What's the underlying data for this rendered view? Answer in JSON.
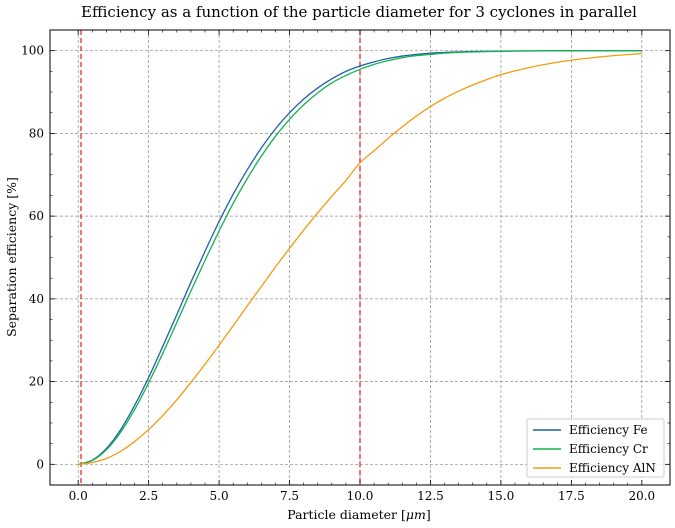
{
  "chart_data": {
    "type": "line",
    "title": "Efficiency as a function of the particle diameter for 3 cyclones in parallel",
    "xlabel": "Particle diameter [",
    "xlabel_unit": "μm",
    "xlabel_end": "]",
    "ylabel": "Separation efficiency [%]",
    "xlim": [
      -1.0,
      21.0
    ],
    "ylim": [
      -5,
      105
    ],
    "xticks": [
      0.0,
      2.5,
      5.0,
      7.5,
      10.0,
      12.5,
      15.0,
      17.5,
      20.0
    ],
    "xtick_labels": [
      "0.0",
      "2.5",
      "5.0",
      "7.5",
      "10.0",
      "12.5",
      "15.0",
      "17.5",
      "20.0"
    ],
    "yticks": [
      0,
      20,
      40,
      60,
      80,
      100
    ],
    "ytick_labels": [
      "0",
      "20",
      "40",
      "60",
      "80",
      "100"
    ],
    "grid": true,
    "legend_position": "lower-right",
    "vlines": [
      {
        "x": 0.1,
        "color": "#e31a1c",
        "style": "dashed"
      },
      {
        "x": 10.0,
        "color": "#e31a1c",
        "style": "dashed"
      }
    ],
    "x": [
      0,
      0.5,
      1,
      1.5,
      2,
      2.5,
      3,
      3.5,
      4,
      4.5,
      5,
      5.5,
      6,
      6.5,
      7,
      7.5,
      8,
      8.5,
      9,
      9.5,
      10,
      10.5,
      11,
      11.5,
      12,
      12.5,
      13,
      13.5,
      14,
      15,
      16,
      17,
      18,
      19,
      20
    ],
    "series": [
      {
        "name": "Efficiency Fe",
        "color": "#1f5fa6",
        "values": [
          0,
          1.0,
          3.8,
          8.3,
          14.2,
          21.0,
          28.5,
          36.2,
          44.0,
          51.5,
          58.7,
          65.3,
          71.2,
          76.5,
          81.1,
          85.0,
          88.3,
          91.0,
          93.2,
          95.0,
          96.3,
          97.3,
          98.1,
          98.7,
          99.1,
          99.4,
          99.6,
          99.7,
          99.8,
          99.9,
          99.95,
          99.98,
          99.99,
          100,
          100
        ]
      },
      {
        "name": "Efficiency Cr",
        "color": "#13b34f",
        "values": [
          0,
          0.9,
          3.5,
          7.7,
          13.2,
          19.7,
          26.8,
          34.3,
          41.9,
          49.3,
          56.4,
          63.1,
          69.1,
          74.5,
          79.3,
          83.4,
          86.9,
          89.8,
          92.2,
          94.0,
          95.5,
          96.7,
          97.6,
          98.3,
          98.8,
          99.1,
          99.4,
          99.6,
          99.7,
          99.85,
          99.93,
          99.97,
          99.99,
          100,
          100
        ]
      },
      {
        "name": "Efficiency AlN",
        "color": "#f39c12",
        "values": [
          0,
          0.4,
          1.4,
          3.1,
          5.5,
          8.4,
          11.8,
          15.6,
          19.8,
          24.2,
          28.8,
          33.5,
          38.3,
          43.0,
          47.7,
          52.2,
          56.6,
          60.8,
          64.8,
          68.6,
          72.9,
          75.8,
          78.8,
          81.6,
          84.2,
          86.5,
          88.5,
          90.2,
          91.7,
          94.2,
          95.9,
          97.2,
          98.1,
          98.8,
          99.3
        ]
      }
    ]
  }
}
